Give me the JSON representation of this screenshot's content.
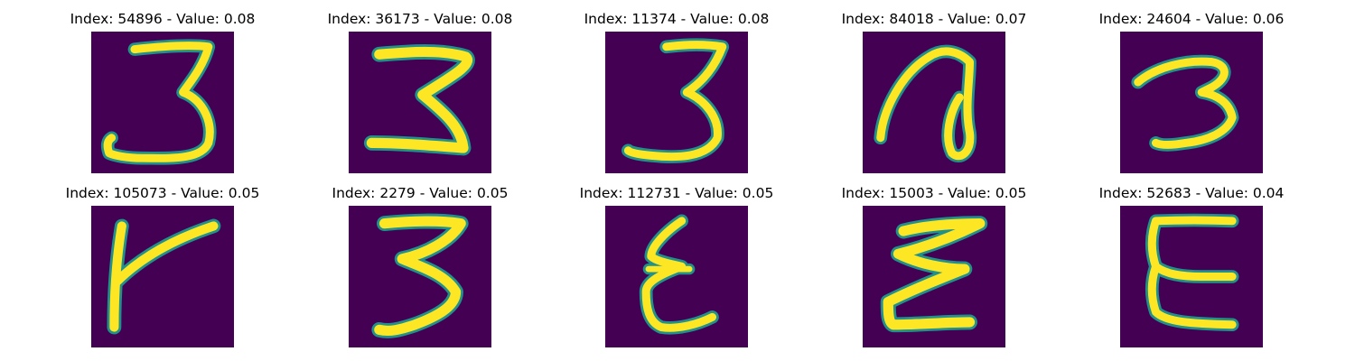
{
  "figure": {
    "background": "#ffffff",
    "colormap": [
      "#440154",
      "#3b528b",
      "#21918c",
      "#5ec962",
      "#fde725"
    ],
    "panels": [
      {
        "title": "Index: 54896 - Value: 0.08",
        "index": 54896,
        "value": 0.08,
        "glyph": "3"
      },
      {
        "title": "Index: 36173 - Value: 0.08",
        "index": 36173,
        "value": 0.08,
        "glyph": "3"
      },
      {
        "title": "Index: 11374 - Value: 0.08",
        "index": 11374,
        "value": 0.08,
        "glyph": "3"
      },
      {
        "title": "Index: 84018 - Value: 0.07",
        "index": 84018,
        "value": 0.07,
        "glyph": "looped-stroke"
      },
      {
        "title": "Index: 24604 - Value: 0.06",
        "index": 24604,
        "value": 0.06,
        "glyph": "3"
      },
      {
        "title": "Index: 105073 - Value: 0.05",
        "index": 105073,
        "value": 0.05,
        "glyph": "k-like-stroke"
      },
      {
        "title": "Index: 2279 - Value: 0.05",
        "index": 2279,
        "value": 0.05,
        "glyph": "3"
      },
      {
        "title": "Index: 112731 - Value: 0.05",
        "index": 112731,
        "value": 0.05,
        "glyph": "reversed-3"
      },
      {
        "title": "Index: 15003 - Value: 0.05",
        "index": 15003,
        "value": 0.05,
        "glyph": "reversed-3"
      },
      {
        "title": "Index: 52683 - Value: 0.04",
        "index": 52683,
        "value": 0.04,
        "glyph": "E"
      }
    ]
  }
}
